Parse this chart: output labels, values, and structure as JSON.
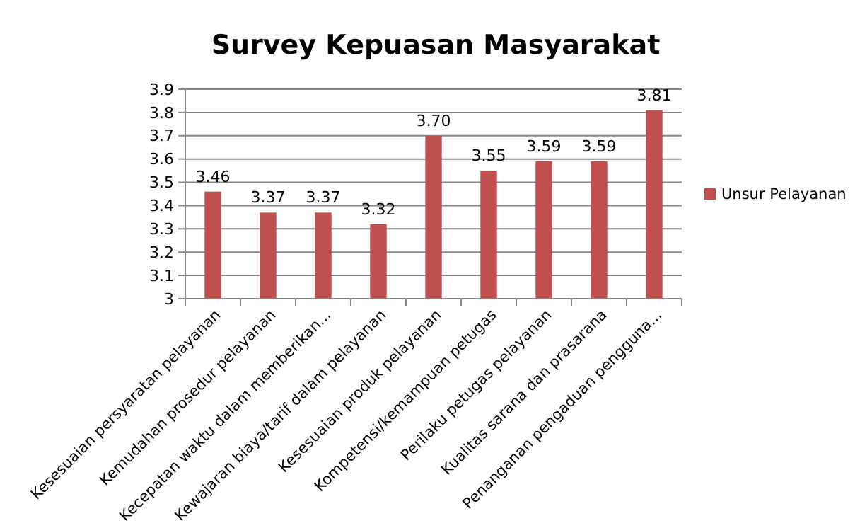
{
  "chart_data": {
    "type": "bar",
    "title": "Survey Kepuasan Masyarakat",
    "categories": [
      "Kesesuaian persyaratan pelayanan",
      "Kemudahan prosedur pelayanan",
      "Kecepatan waktu dalam memberikan...",
      "Kewajaran biaya/tarif dalam pelayanan",
      "Kesesuaian produk pelayanan",
      "Kompetensi/kemampuan petugas",
      "Perilaku petugas pelayanan",
      "Kualitas sarana dan prasarana",
      "Penanganan pengaduan pengguna..."
    ],
    "series": [
      {
        "name": "Unsur Pelayanan",
        "color": "#c0504d",
        "values": [
          3.46,
          3.37,
          3.37,
          3.32,
          3.7,
          3.55,
          3.59,
          3.59,
          3.81
        ],
        "value_labels": [
          "3.46",
          "3.37",
          "3.37",
          "3.32",
          "3.70",
          "3.55",
          "3.59",
          "3.59",
          "3.81"
        ]
      }
    ],
    "ylim": [
      3,
      3.9
    ],
    "yticks": [
      3,
      3.1,
      3.2,
      3.3,
      3.4,
      3.5,
      3.6,
      3.7,
      3.8,
      3.9
    ],
    "grid": "y",
    "legend": "right"
  }
}
